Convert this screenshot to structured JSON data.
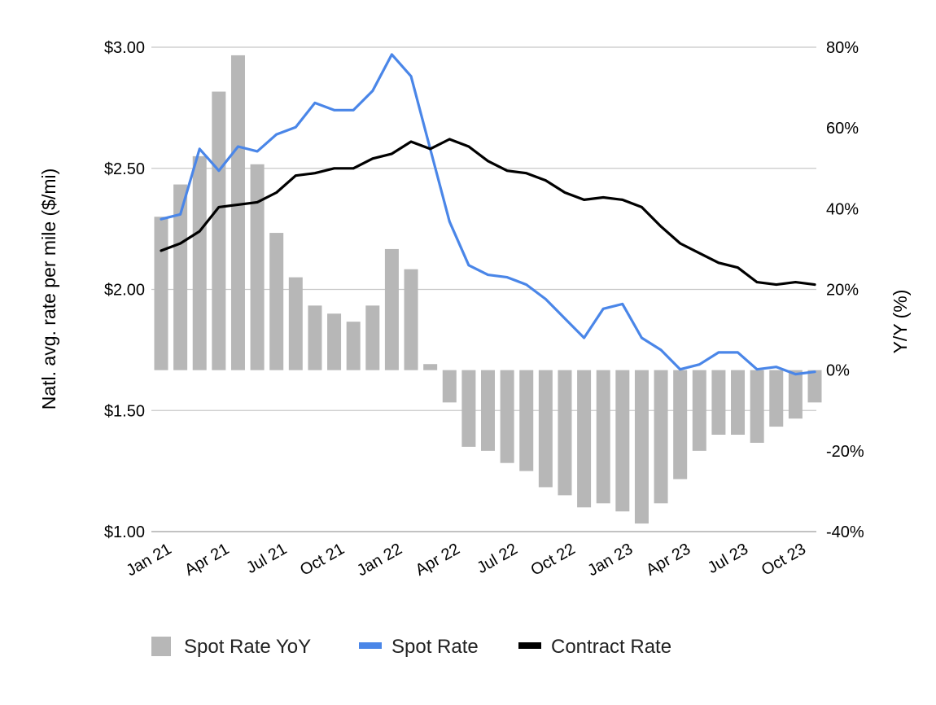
{
  "chart_data": {
    "type": "bar+line",
    "x": [
      "Jan 21",
      "Feb 21",
      "Mar 21",
      "Apr 21",
      "May 21",
      "Jun 21",
      "Jul 21",
      "Aug 21",
      "Sep 21",
      "Oct 21",
      "Nov 21",
      "Dec 21",
      "Jan 22",
      "Feb 22",
      "Mar 22",
      "Apr 22",
      "May 22",
      "Jun 22",
      "Jul 22",
      "Aug 22",
      "Sep 22",
      "Oct 22",
      "Nov 22",
      "Dec 22",
      "Jan 23",
      "Feb 23",
      "Mar 23",
      "Apr 23",
      "May 23",
      "Jun 23",
      "Jul 23",
      "Aug 23",
      "Sep 23",
      "Oct 23",
      "Nov 23"
    ],
    "x_tick_labels": [
      "Jan 21",
      "Apr 21",
      "Jul 21",
      "Oct 21",
      "Jan 22",
      "Apr 22",
      "Jul 22",
      "Oct 22",
      "Jan 23",
      "Apr 23",
      "Jul 23",
      "Oct 23"
    ],
    "y_left": {
      "label": "Natl. avg. rate per mile ($/mi)",
      "range": [
        1.0,
        3.0
      ],
      "ticks": [
        "$1.00",
        "$1.50",
        "$2.00",
        "$2.50",
        "$3.00"
      ]
    },
    "y_right": {
      "label": "Y/Y (%)",
      "range": [
        -40,
        80
      ],
      "ticks": [
        "-40%",
        "-20%",
        "0%",
        "20%",
        "40%",
        "60%",
        "80%"
      ]
    },
    "grid": true,
    "legend_position": "bottom",
    "colors": {
      "Spot Rate YoY": "#b7b7b7",
      "Spot Rate": "#4a86e8",
      "Contract Rate": "#000000"
    },
    "series": [
      {
        "name": "Spot Rate YoY",
        "type": "bar",
        "axis": "right",
        "values": [
          38,
          46,
          53,
          69,
          78,
          51,
          34,
          23,
          16,
          14,
          12,
          16,
          30,
          25,
          1.5,
          -8,
          -19,
          -20,
          -23,
          -25,
          -29,
          -31,
          -34,
          -33,
          -35,
          -38,
          -33,
          -27,
          -20,
          -16,
          -16,
          -18,
          -14,
          -12,
          -8
        ]
      },
      {
        "name": "Spot Rate",
        "type": "line",
        "axis": "left",
        "values": [
          2.29,
          2.31,
          2.58,
          2.49,
          2.59,
          2.57,
          2.64,
          2.67,
          2.77,
          2.74,
          2.74,
          2.82,
          2.97,
          2.88,
          2.58,
          2.28,
          2.1,
          2.06,
          2.05,
          2.02,
          1.96,
          1.88,
          1.8,
          1.92,
          1.94,
          1.8,
          1.75,
          1.67,
          1.69,
          1.74,
          1.74,
          1.67,
          1.68,
          1.65,
          1.66
        ]
      },
      {
        "name": "Contract Rate",
        "type": "line",
        "axis": "left",
        "values": [
          2.16,
          2.19,
          2.24,
          2.34,
          2.35,
          2.36,
          2.4,
          2.47,
          2.48,
          2.5,
          2.5,
          2.54,
          2.56,
          2.61,
          2.58,
          2.62,
          2.59,
          2.53,
          2.49,
          2.48,
          2.45,
          2.4,
          2.37,
          2.38,
          2.37,
          2.34,
          2.26,
          2.19,
          2.15,
          2.11,
          2.09,
          2.03,
          2.02,
          2.03,
          2.02
        ]
      }
    ]
  }
}
